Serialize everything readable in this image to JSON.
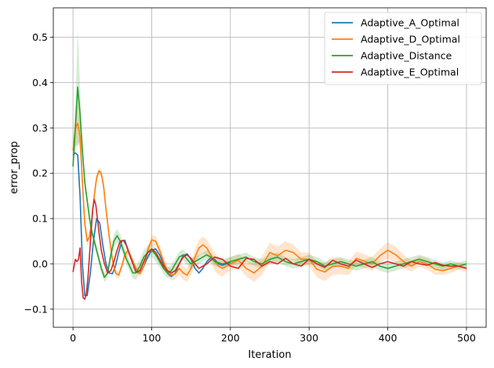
{
  "chart_data": {
    "type": "line",
    "title": "",
    "xlabel": "Iteration",
    "ylabel": "error_prop",
    "xlim": [
      -25,
      525
    ],
    "ylim": [
      -0.14,
      0.565
    ],
    "xticks": [
      0,
      100,
      200,
      300,
      400,
      500
    ],
    "yticks": [
      -0.1,
      0.0,
      0.1,
      0.2,
      0.3,
      0.4,
      0.5
    ],
    "ytick_labels": [
      "−0.1",
      "0.0",
      "0.1",
      "0.2",
      "0.3",
      "0.4",
      "0.5"
    ],
    "grid": true,
    "legend_position": "top-right",
    "series": [
      {
        "name": "Adaptive_A_Optimal",
        "color": "#1f77b4",
        "x": [
          0,
          3,
          6,
          9,
          12,
          15,
          18,
          22,
          26,
          30,
          34,
          38,
          42,
          46,
          50,
          54,
          58,
          62,
          66,
          70,
          75,
          80,
          85,
          90,
          95,
          100,
          105,
          110,
          115,
          120,
          125,
          130,
          135,
          140,
          145,
          150,
          155,
          160,
          165,
          170,
          175,
          180,
          185,
          190,
          195,
          200
        ],
        "values": [
          0.24,
          0.245,
          0.24,
          0.15,
          0.0,
          -0.07,
          -0.07,
          -0.02,
          0.05,
          0.1,
          0.09,
          0.04,
          0.0,
          -0.02,
          -0.022,
          -0.005,
          0.025,
          0.05,
          0.052,
          0.03,
          0.005,
          -0.018,
          -0.02,
          -0.005,
          0.015,
          0.03,
          0.033,
          0.02,
          0.0,
          -0.02,
          -0.028,
          -0.02,
          0.0,
          0.018,
          0.022,
          0.01,
          -0.01,
          -0.02,
          -0.01,
          0.005,
          0.013,
          0.01,
          0.0,
          -0.003,
          0.0,
          0.003
        ]
      },
      {
        "name": "Adaptive_D_Optimal",
        "color": "#ff7f0e",
        "x": [
          0,
          3,
          6,
          9,
          12,
          15,
          18,
          21,
          24,
          27,
          30,
          33,
          36,
          39,
          42,
          46,
          50,
          54,
          58,
          62,
          66,
          70,
          75,
          80,
          85,
          90,
          95,
          100,
          105,
          110,
          115,
          120,
          125,
          130,
          135,
          140,
          145,
          150,
          155,
          160,
          165,
          170,
          175,
          180,
          185,
          190,
          195,
          200,
          210,
          220,
          230,
          240,
          250,
          260,
          270,
          280,
          290,
          300,
          310,
          320,
          330,
          340,
          350,
          360,
          370,
          380,
          390,
          400,
          410,
          420,
          430,
          440,
          450,
          460,
          470,
          480,
          490,
          500
        ],
        "values": [
          0.25,
          0.3,
          0.31,
          0.28,
          0.18,
          0.09,
          0.05,
          0.06,
          0.1,
          0.15,
          0.19,
          0.205,
          0.2,
          0.17,
          0.12,
          0.06,
          0.01,
          -0.02,
          -0.025,
          -0.005,
          0.02,
          0.03,
          0.01,
          -0.01,
          -0.022,
          -0.005,
          0.03,
          0.053,
          0.05,
          0.03,
          0.005,
          -0.015,
          -0.025,
          -0.022,
          -0.01,
          -0.02,
          -0.025,
          -0.01,
          0.015,
          0.035,
          0.042,
          0.035,
          0.02,
          0.005,
          -0.005,
          -0.01,
          -0.005,
          0.0,
          0.008,
          -0.01,
          -0.02,
          -0.005,
          0.025,
          0.018,
          0.03,
          0.025,
          0.01,
          0.01,
          -0.012,
          -0.018,
          -0.005,
          -0.005,
          -0.01,
          0.012,
          0.006,
          0.0,
          0.018,
          0.03,
          0.02,
          0.005,
          -0.005,
          0.005,
          0.0,
          -0.012,
          -0.015,
          -0.01,
          -0.005,
          -0.01
        ],
        "band": [
          0.02,
          0.05,
          0.04,
          0.03,
          0.02,
          0.015,
          0.01,
          0.012,
          0.015,
          0.015,
          0.01,
          0.008,
          0.008,
          0.01,
          0.012,
          0.01,
          0.01,
          0.008,
          0.008,
          0.008,
          0.01,
          0.01,
          0.008,
          0.008,
          0.008,
          0.008,
          0.01,
          0.01,
          0.012,
          0.012,
          0.012,
          0.012,
          0.012,
          0.012,
          0.015,
          0.015,
          0.015,
          0.015,
          0.018,
          0.018,
          0.018,
          0.018,
          0.018,
          0.02,
          0.02,
          0.018,
          0.015,
          0.015,
          0.015,
          0.018,
          0.02,
          0.02,
          0.022,
          0.02,
          0.02,
          0.018,
          0.015,
          0.015,
          0.018,
          0.02,
          0.02,
          0.018,
          0.015,
          0.015,
          0.015,
          0.015,
          0.015,
          0.018,
          0.018,
          0.015,
          0.012,
          0.012,
          0.012,
          0.012,
          0.01,
          0.01,
          0.008,
          0.008
        ]
      },
      {
        "name": "Adaptive_Distance",
        "color": "#2ca02c",
        "x": [
          0,
          3,
          6,
          9,
          12,
          15,
          18,
          21,
          24,
          27,
          30,
          33,
          36,
          40,
          44,
          48,
          52,
          56,
          60,
          64,
          68,
          72,
          76,
          80,
          85,
          90,
          95,
          100,
          105,
          110,
          115,
          120,
          125,
          130,
          135,
          140,
          145,
          150,
          155,
          160,
          165,
          170,
          175,
          180,
          190,
          200,
          210,
          220,
          230,
          240,
          250,
          260,
          270,
          280,
          290,
          300,
          310,
          320,
          330,
          340,
          350,
          360,
          370,
          380,
          390,
          400,
          410,
          420,
          430,
          440,
          450,
          460,
          470,
          480,
          490,
          500
        ],
        "values": [
          0.215,
          0.3,
          0.39,
          0.33,
          0.25,
          0.18,
          0.14,
          0.1,
          0.07,
          0.05,
          0.03,
          0.01,
          -0.01,
          -0.03,
          -0.02,
          0.02,
          0.05,
          0.062,
          0.05,
          0.03,
          0.01,
          -0.005,
          -0.02,
          -0.02,
          -0.005,
          0.015,
          0.025,
          0.03,
          0.02,
          0.005,
          -0.01,
          -0.02,
          -0.015,
          0.0,
          0.015,
          0.02,
          0.01,
          0.0,
          0.005,
          0.01,
          0.015,
          0.02,
          0.015,
          0.005,
          0.0,
          0.005,
          0.01,
          0.015,
          0.005,
          0.0,
          0.01,
          0.015,
          0.005,
          0.0,
          0.005,
          0.01,
          0.005,
          -0.005,
          0.0,
          0.005,
          0.0,
          -0.005,
          0.0,
          0.005,
          -0.005,
          -0.01,
          -0.005,
          0.0,
          0.005,
          0.01,
          0.005,
          0.0,
          -0.005,
          0.0,
          -0.005,
          0.0
        ],
        "band": [
          0.01,
          0.04,
          0.13,
          0.06,
          0.02,
          0.015,
          0.012,
          0.01,
          0.01,
          0.01,
          0.01,
          0.01,
          0.01,
          0.01,
          0.012,
          0.012,
          0.015,
          0.015,
          0.015,
          0.012,
          0.012,
          0.012,
          0.012,
          0.015,
          0.015,
          0.015,
          0.015,
          0.015,
          0.015,
          0.012,
          0.012,
          0.012,
          0.012,
          0.012,
          0.012,
          0.012,
          0.012,
          0.012,
          0.012,
          0.01,
          0.01,
          0.01,
          0.01,
          0.01,
          0.01,
          0.01,
          0.01,
          0.01,
          0.01,
          0.01,
          0.01,
          0.01,
          0.01,
          0.01,
          0.01,
          0.01,
          0.01,
          0.01,
          0.01,
          0.01,
          0.01,
          0.01,
          0.01,
          0.01,
          0.01,
          0.01,
          0.01,
          0.01,
          0.01,
          0.01,
          0.01,
          0.008,
          0.008,
          0.008,
          0.008,
          0.008
        ]
      },
      {
        "name": "Adaptive_E_Optimal",
        "color": "#d62728",
        "x": [
          0,
          3,
          5,
          7,
          9,
          11,
          13,
          15,
          17,
          19,
          21,
          23,
          25,
          27,
          29,
          31,
          33,
          36,
          40,
          44,
          48,
          52,
          56,
          60,
          64,
          68,
          72,
          76,
          80,
          85,
          90,
          95,
          100,
          105,
          110,
          115,
          120,
          125,
          130,
          135,
          140,
          145,
          150,
          155,
          160,
          170,
          180,
          190,
          200,
          210,
          220,
          230,
          240,
          250,
          260,
          270,
          280,
          290,
          300,
          310,
          320,
          330,
          340,
          350,
          360,
          370,
          380,
          390,
          400,
          410,
          420,
          430,
          440,
          450,
          460,
          470,
          480,
          490,
          500
        ],
        "values": [
          -0.018,
          0.01,
          0.005,
          0.01,
          0.035,
          -0.04,
          -0.075,
          -0.078,
          -0.065,
          -0.03,
          0.02,
          0.07,
          0.12,
          0.142,
          0.13,
          0.1,
          0.07,
          0.03,
          0.0,
          -0.02,
          -0.015,
          0.005,
          0.03,
          0.05,
          0.052,
          0.04,
          0.02,
          0.0,
          -0.018,
          -0.015,
          0.005,
          0.025,
          0.033,
          0.025,
          0.01,
          -0.005,
          -0.015,
          -0.02,
          -0.015,
          0.0,
          0.015,
          0.02,
          0.012,
          0.0,
          -0.01,
          0.0,
          0.015,
          0.01,
          -0.005,
          -0.01,
          0.012,
          0.01,
          -0.005,
          0.005,
          0.0,
          0.012,
          0.0,
          -0.005,
          0.01,
          0.0,
          -0.008,
          0.008,
          0.0,
          -0.005,
          0.008,
          0.0,
          -0.008,
          0.0,
          0.005,
          0.0,
          -0.005,
          0.005,
          0.0,
          -0.003,
          0.003,
          -0.003,
          -0.005,
          -0.005,
          -0.01
        ]
      }
    ]
  }
}
